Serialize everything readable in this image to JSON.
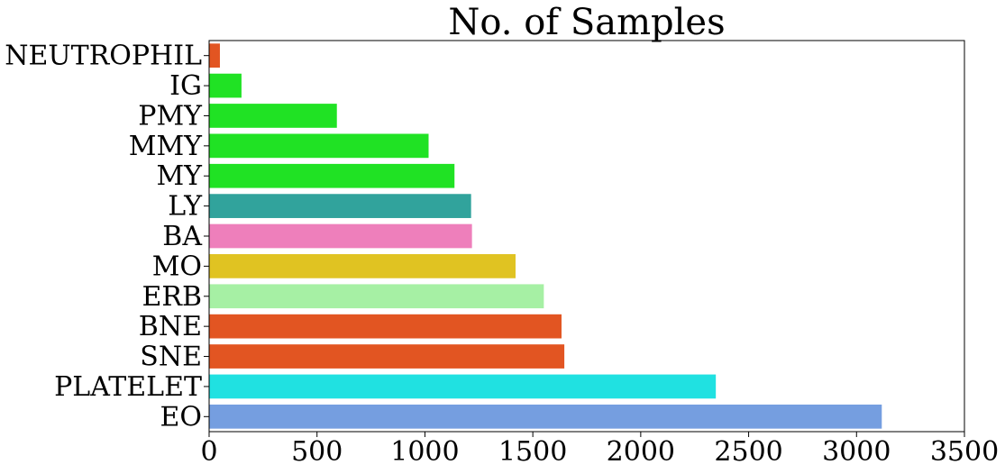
{
  "chart_data": {
    "type": "bar",
    "orientation": "horizontal",
    "title": "No. of Samples",
    "xlabel": "",
    "ylabel": "",
    "xlim": [
      0,
      3500
    ],
    "xticks": [
      "0",
      "500",
      "1000",
      "1500",
      "2000",
      "2500",
      "3000",
      "3500"
    ],
    "grid": false,
    "categories": [
      "NEUTROPHIL",
      "IG",
      "PMY",
      "MMY",
      "MY",
      "LY",
      "BA",
      "MO",
      "ERB",
      "BNE",
      "SNE",
      "PLATELET",
      "EO"
    ],
    "values": [
      50,
      150,
      592,
      1017,
      1137,
      1214,
      1218,
      1420,
      1551,
      1633,
      1646,
      2348,
      3117
    ],
    "colors": [
      "#e25522",
      "#20e224",
      "#20e224",
      "#20e224",
      "#20e224",
      "#31a39c",
      "#ee7fbb",
      "#e0c322",
      "#a6f0a4",
      "#e25522",
      "#e25522",
      "#20e1e1",
      "#759ee0"
    ]
  }
}
